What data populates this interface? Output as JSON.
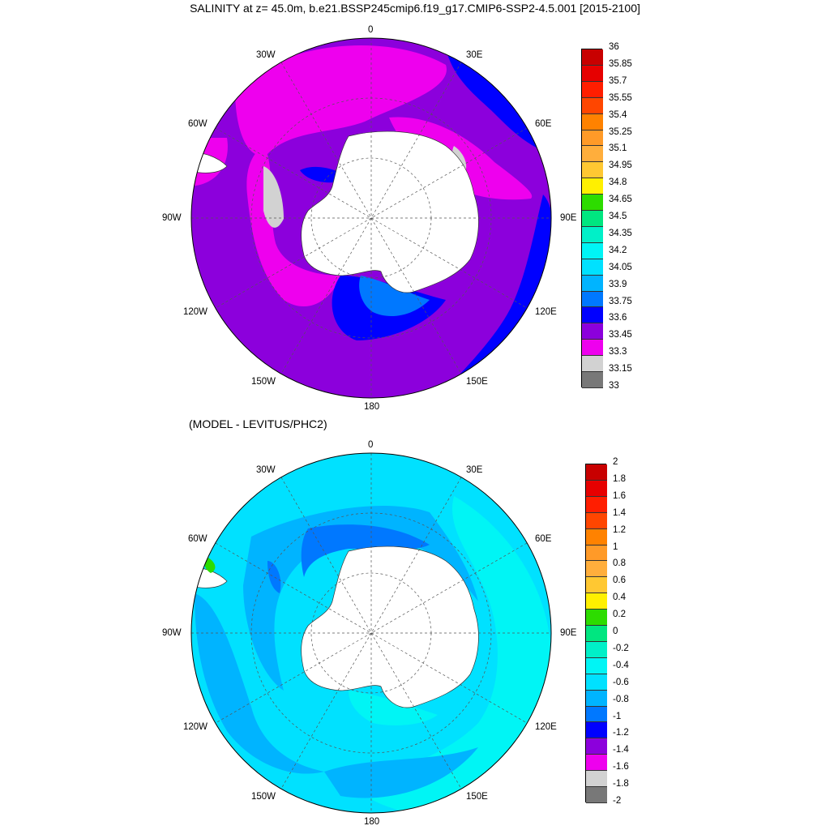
{
  "title": "SALINITY at z=  45.0m, b.e21.BSSP245cmip6.f19_g17.CMIP6-SSP2-4.5.001 [2015-2100]",
  "subtitle": "(MODEL - LEVITUS/PHC2)",
  "longitude_labels": [
    "0",
    "30E",
    "60E",
    "90E",
    "120E",
    "150E",
    "180",
    "150W",
    "120W",
    "90W",
    "60W",
    "30W"
  ],
  "top_colorbar": {
    "labels": [
      "36",
      "35.85",
      "35.7",
      "35.55",
      "35.4",
      "35.25",
      "35.1",
      "34.95",
      "34.8",
      "34.65",
      "34.5",
      "34.35",
      "34.2",
      "34.05",
      "33.9",
      "33.75",
      "33.6",
      "33.45",
      "33.3",
      "33.15",
      "33"
    ],
    "colors": [
      "#c80000",
      "#e60000",
      "#ff1e00",
      "#ff4600",
      "#ff8200",
      "#ff9a28",
      "#ffae3c",
      "#ffc832",
      "#fff000",
      "#2ddc00",
      "#00e680",
      "#00f0c8",
      "#00f5f5",
      "#00e1ff",
      "#00b4ff",
      "#0078ff",
      "#0000ff",
      "#8c00dc",
      "#ee00ee",
      "#d2d2d2",
      "#787878"
    ]
  },
  "bottom_colorbar": {
    "labels": [
      "2",
      "1.8",
      "1.6",
      "1.4",
      "1.2",
      "1",
      "0.8",
      "0.6",
      "0.4",
      "0.2",
      "0",
      "-0.2",
      "-0.4",
      "-0.6",
      "-0.8",
      "-1",
      "-1.2",
      "-1.4",
      "-1.6",
      "-1.8",
      "-2"
    ],
    "colors": [
      "#c80000",
      "#e60000",
      "#ff1e00",
      "#ff4600",
      "#ff8200",
      "#ff9a28",
      "#ffae3c",
      "#ffc832",
      "#fff000",
      "#2ddc00",
      "#00e680",
      "#00f0c8",
      "#00f5f5",
      "#00e1ff",
      "#00b4ff",
      "#0078ff",
      "#0000ff",
      "#8c00dc",
      "#ee00ee",
      "#d2d2d2",
      "#787878"
    ]
  },
  "map_colors": {
    "top_base": "#8c00dc",
    "top_low": "#ee00ee",
    "top_high": "#0000ff",
    "top_higher": "#0078ff",
    "bottom_base": "#00e1ff",
    "bottom_low": "#00b4ff",
    "bottom_lower": "#0078ff",
    "bottom_high": "#00f5f5",
    "land": "#ffffff",
    "ice_gray": "#d2d2d2"
  }
}
